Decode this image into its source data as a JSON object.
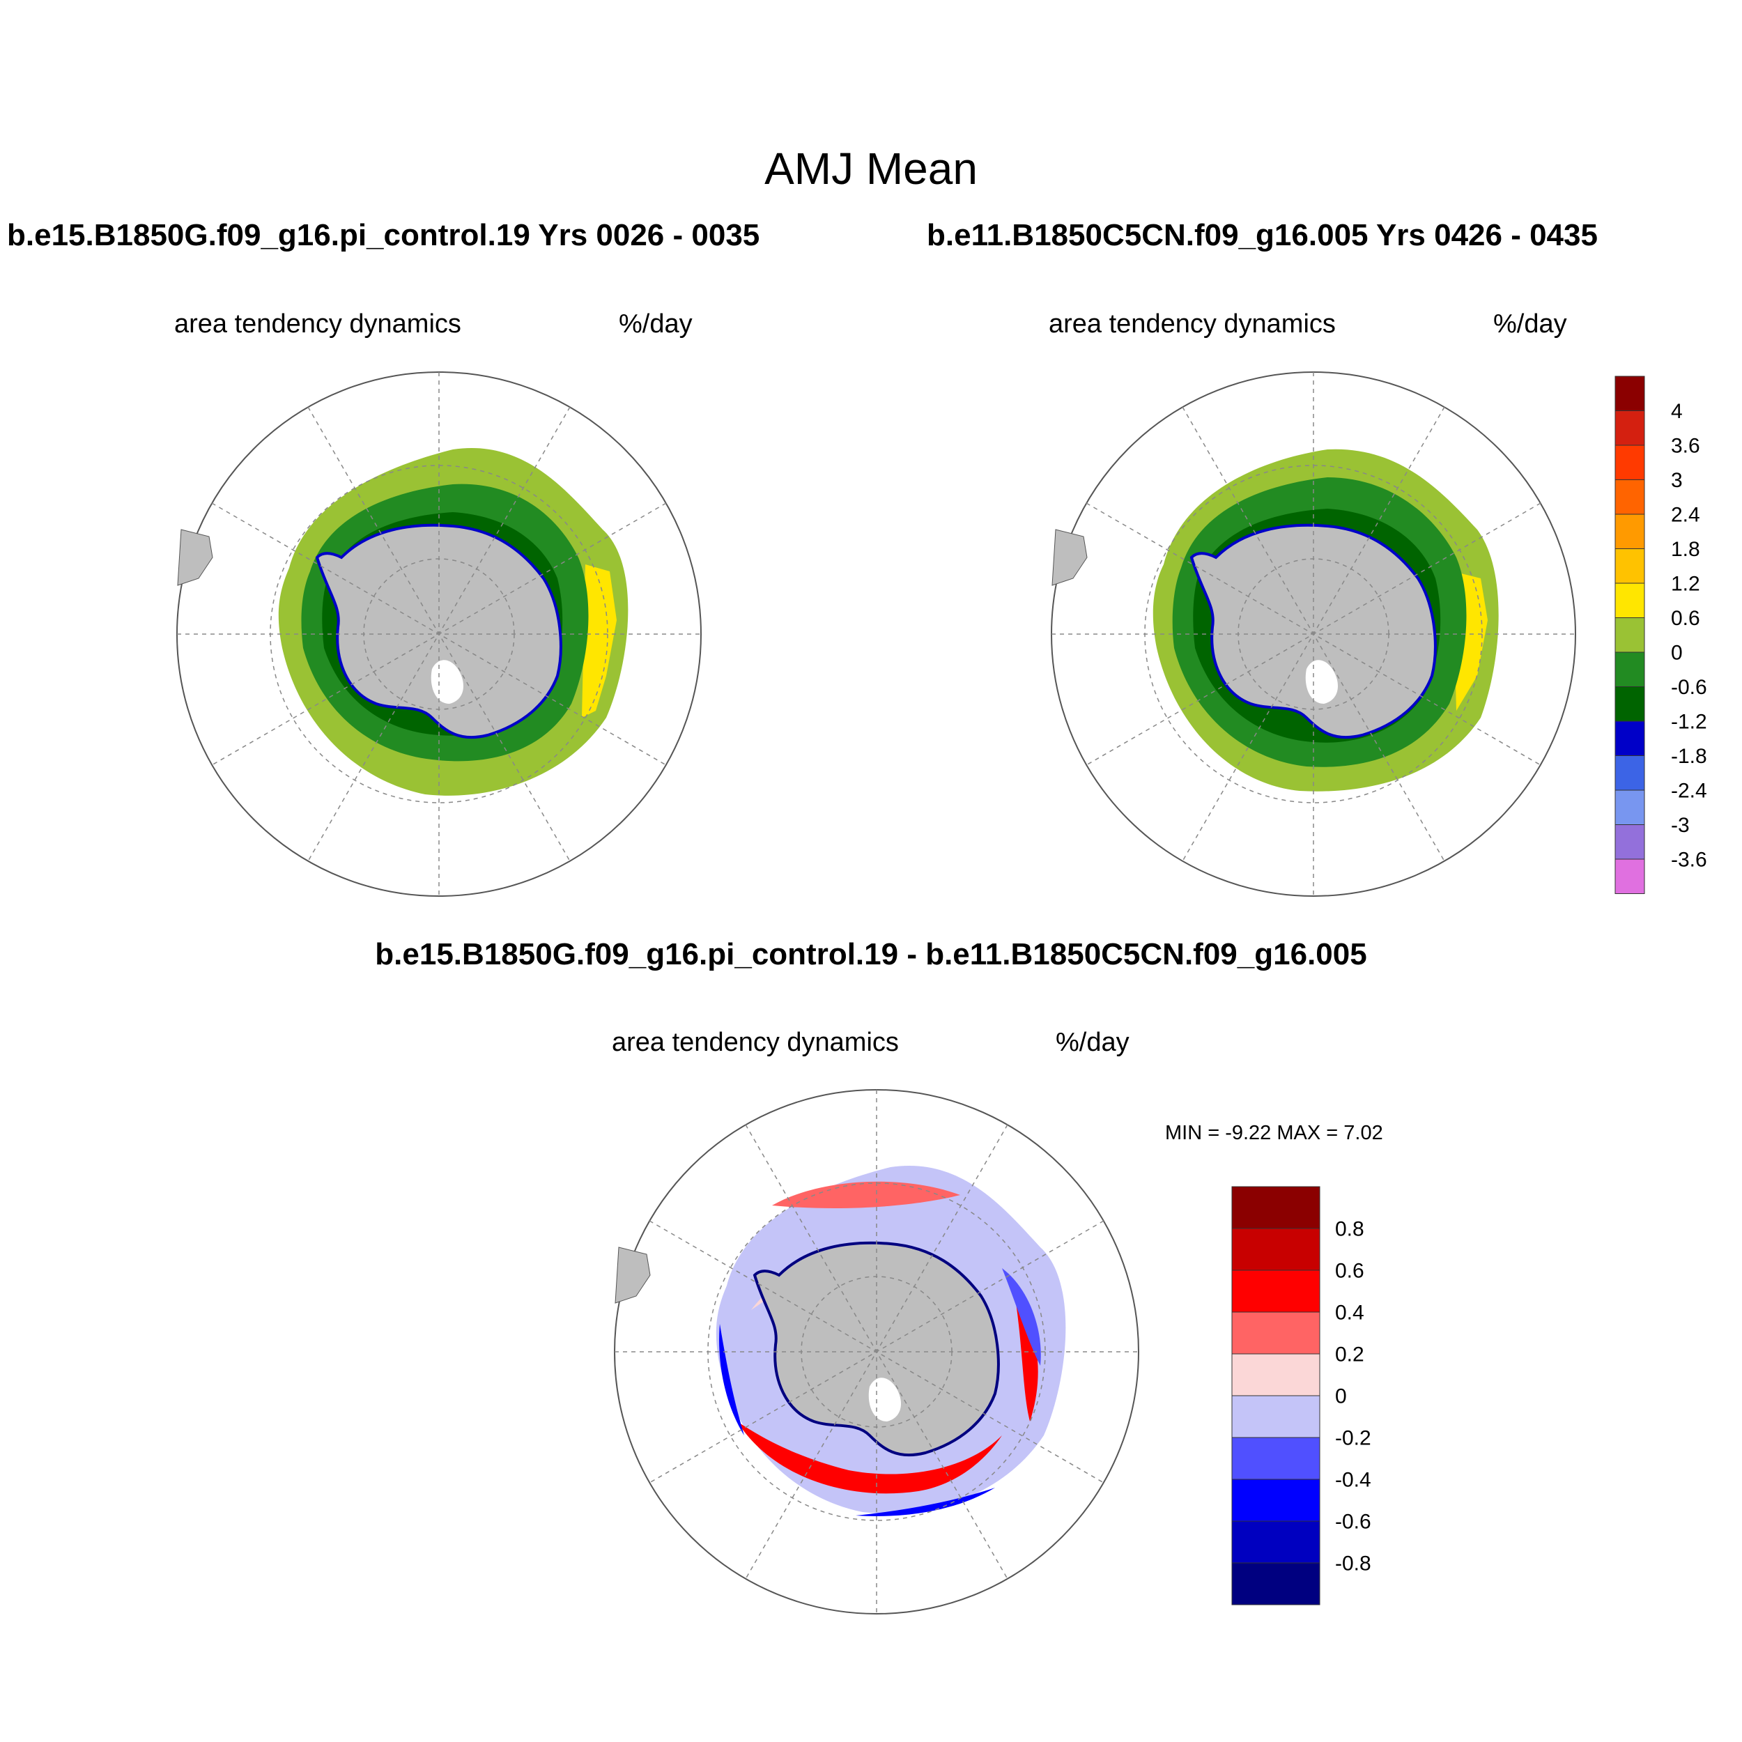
{
  "title": "AMJ Mean",
  "panels": [
    {
      "case_title": "b.e15.B1850G.f09_g16.pi_control.19  Yrs 0026 - 0035",
      "variable": "area tendency dynamics",
      "units": "%/day"
    },
    {
      "case_title": "b.e11.B1850C5CN.f09_g16.005  Yrs 0426 - 0435",
      "variable": "area tendency dynamics",
      "units": "%/day"
    }
  ],
  "difference": {
    "title": "b.e15.B1850G.f09_g16.pi_control.19 - b.e11.B1850C5CN.f09_g16.005",
    "variable": "area tendency dynamics",
    "units": "%/day",
    "minmax": "MIN =  -9.22 MAX =   7.02"
  },
  "colorbar_main": {
    "labels": [
      "4",
      "3.6",
      "3",
      "2.4",
      "1.8",
      "1.2",
      "0.6",
      "0",
      "-0.6",
      "-1.2",
      "-1.8",
      "-2.4",
      "-3",
      "-3.6"
    ],
    "colors": [
      "#8b0000",
      "#d42010",
      "#ff3a00",
      "#ff6400",
      "#ff9a00",
      "#ffc200",
      "#ffe600",
      "#9ac234",
      "#228b22",
      "#006400",
      "#0000c8",
      "#3c64e6",
      "#7896f0",
      "#9370db",
      "#e070e0"
    ]
  },
  "colorbar_diff": {
    "labels": [
      "0.8",
      "0.6",
      "0.4",
      "0.2",
      "0",
      "-0.2",
      "-0.4",
      "-0.6",
      "-0.8"
    ],
    "colors": [
      "#8b0000",
      "#c80000",
      "#ff0000",
      "#ff6464",
      "#fbd7d7",
      "#c4c4f8",
      "#5050ff",
      "#0000ff",
      "#0000c0",
      "#000080"
    ]
  },
  "map_colors": {
    "land": "#bebebe",
    "outer_green": "#9ac234",
    "mid_green": "#228b22",
    "inner_green": "#006400",
    "yellow": "#ffe600",
    "coast_blue": "#0000c8",
    "coast_pink": "#e070e0",
    "diff_light_red": "#fbd7d7",
    "diff_red": "#ff0000",
    "diff_dark_red": "#c80000",
    "diff_light_blue": "#c4c4f8",
    "diff_blue": "#0000ff"
  }
}
